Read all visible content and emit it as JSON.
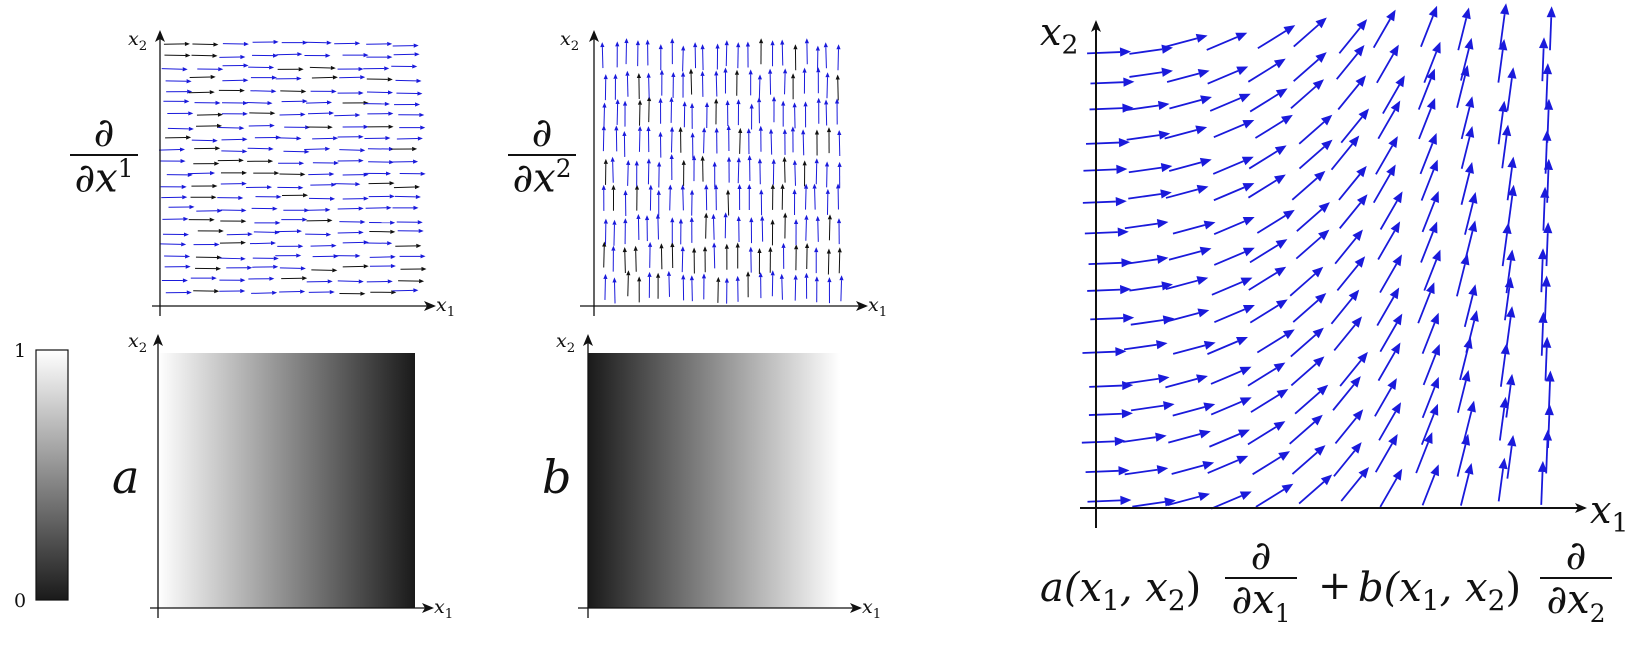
{
  "panels": {
    "d1": {
      "xlabel": "x",
      "xsub": "1",
      "ylabel": "x",
      "ysub": "2",
      "op_num": "∂",
      "op_den_d": "∂",
      "op_den_var": "x",
      "op_den_sup": "1"
    },
    "d2": {
      "xlabel": "x",
      "xsub": "1",
      "ylabel": "x",
      "ysub": "2",
      "op_num": "∂",
      "op_den_d": "∂",
      "op_den_var": "x",
      "op_den_sup": "2"
    },
    "a": {
      "xlabel": "x",
      "xsub": "1",
      "ylabel": "x",
      "ysub": "2",
      "symbol": "a"
    },
    "b": {
      "xlabel": "x",
      "xsub": "1",
      "ylabel": "x",
      "ysub": "2",
      "symbol": "b"
    },
    "combined": {
      "xlabel": "x",
      "xsub": "1",
      "ylabel": "x",
      "ysub": "2"
    }
  },
  "colorbar": {
    "max_label": "1",
    "min_label": "0"
  },
  "formula": {
    "a_term": "a(x",
    "sub1": "1",
    "comma": ", x",
    "sub2": "2",
    "close": ")",
    "plus": "+",
    "b_term": "b(x",
    "frac1_num": "∂",
    "frac1_den_d": "∂",
    "frac1_den_var": "x",
    "frac1_den_sub": "1",
    "frac2_num": "∂",
    "frac2_den_d": "∂",
    "frac2_den_var": "x",
    "frac2_den_sub": "2"
  },
  "colors": {
    "arrow": "#1a1adb",
    "axis": "#111111",
    "dark": "#1a1a1a",
    "light": "#ffffff"
  }
}
